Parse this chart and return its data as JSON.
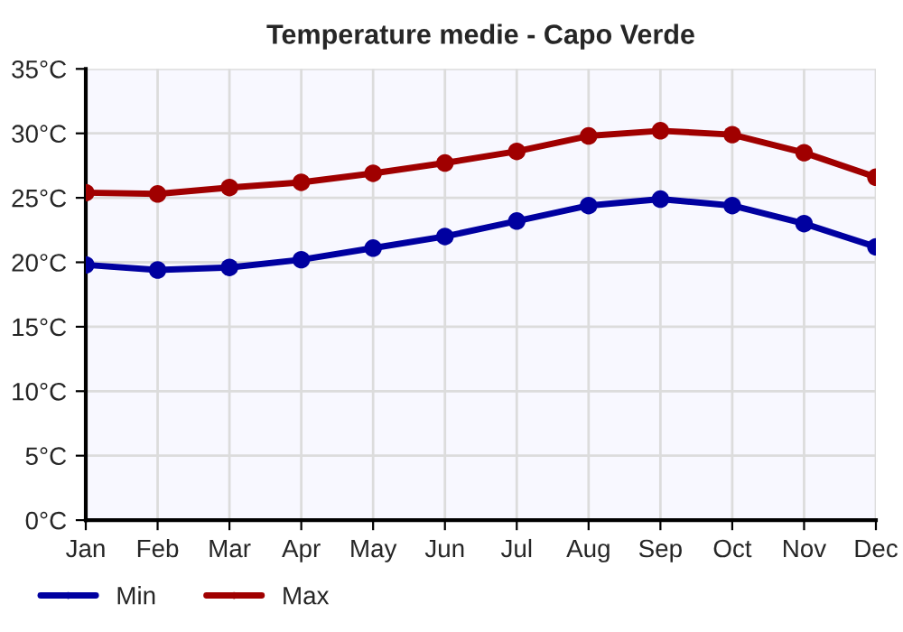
{
  "chart_data": {
    "type": "line",
    "title": "Temperature medie - Capo Verde",
    "categories": [
      "Jan",
      "Feb",
      "Mar",
      "Apr",
      "May",
      "Jun",
      "Jul",
      "Aug",
      "Sep",
      "Oct",
      "Nov",
      "Dec"
    ],
    "series": [
      {
        "name": "Min",
        "color": "#0000a0",
        "values": [
          19.8,
          19.4,
          19.6,
          20.2,
          21.1,
          22.0,
          23.2,
          24.4,
          24.9,
          24.4,
          23.0,
          21.2
        ]
      },
      {
        "name": "Max",
        "color": "#a00000",
        "values": [
          25.4,
          25.3,
          25.8,
          26.2,
          26.9,
          27.7,
          28.6,
          29.8,
          30.2,
          29.9,
          28.5,
          26.6
        ]
      }
    ],
    "ylim": [
      0,
      35
    ],
    "yticks": [
      {
        "value": 0,
        "label": "0°C"
      },
      {
        "value": 5,
        "label": "5°C"
      },
      {
        "value": 10,
        "label": "10°C"
      },
      {
        "value": 15,
        "label": "15°C"
      },
      {
        "value": 20,
        "label": "20°C"
      },
      {
        "value": 25,
        "label": "25°C"
      },
      {
        "value": 30,
        "label": "30°C"
      },
      {
        "value": 35,
        "label": "35°C"
      }
    ],
    "grid": true,
    "legend": "bottom left",
    "marker": "circle",
    "line_style": "solid"
  }
}
